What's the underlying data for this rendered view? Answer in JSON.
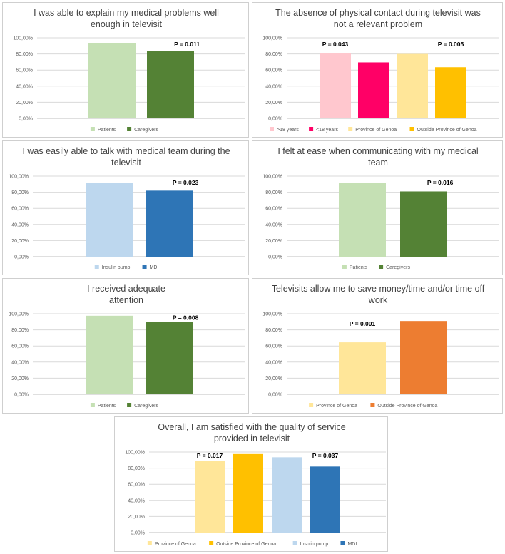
{
  "chart_data": [
    {
      "type": "bar",
      "title": [
        "I was able to explain my medical problems well",
        "enough in televisit"
      ],
      "ylim": [
        0,
        100
      ],
      "yticks": [
        "0,00%",
        "20,00%",
        "40,00%",
        "60,00%",
        "80,00%",
        "100,00%"
      ],
      "categories": [
        "Patients",
        "Caregivers"
      ],
      "values": [
        93.5,
        83.5
      ],
      "colors": [
        "#c5e0b4",
        "#548235"
      ],
      "annotations": [
        {
          "text": "P = 0.011",
          "bar": 1
        }
      ]
    },
    {
      "type": "bar",
      "title": [
        "The absence of physical contact during televisit was",
        "not a relevant problem"
      ],
      "ylim": [
        0,
        100
      ],
      "yticks": [
        "0,00%",
        "20,00%",
        "40,00%",
        "60,00%",
        "80,00%",
        "100,00%"
      ],
      "categories": [
        ">18 years",
        "<18 years",
        "Province of Genoa",
        "Outside Province of Genoa"
      ],
      "values": [
        80.5,
        69.5,
        80,
        63.5
      ],
      "colors": [
        "#ffc7ce",
        "#ff0066",
        "#ffe699",
        "#ffc000"
      ],
      "annotations": [
        {
          "text": "P = 0.043",
          "bar": 0
        },
        {
          "text": "P = 0.005",
          "bar": 3
        }
      ]
    },
    {
      "type": "bar",
      "title": [
        "I was easily able to talk with medical team during the",
        "televisit"
      ],
      "ylim": [
        0,
        100
      ],
      "yticks": [
        "0,00%",
        "20,00%",
        "40,00%",
        "60,00%",
        "80,00%",
        "100,00%"
      ],
      "categories": [
        "Insulin pump",
        "MDI"
      ],
      "values": [
        92,
        82
      ],
      "colors": [
        "#bdd7ee",
        "#2e75b6"
      ],
      "annotations": [
        {
          "text": "P = 0.023",
          "bar": 1
        }
      ]
    },
    {
      "type": "bar",
      "title": [
        "I felt at ease when communicating with my medical",
        "team"
      ],
      "ylim": [
        0,
        100
      ],
      "yticks": [
        "0,00%",
        "20,00%",
        "40,00%",
        "60,00%",
        "80,00%",
        "100,00%"
      ],
      "categories": [
        "Patients",
        "Caregivers"
      ],
      "values": [
        91.5,
        81
      ],
      "colors": [
        "#c5e0b4",
        "#548235"
      ],
      "annotations": [
        {
          "text": "P = 0.016",
          "bar": 1
        }
      ]
    },
    {
      "type": "bar",
      "title": [
        "I received adequate",
        "attention"
      ],
      "ylim": [
        0,
        100
      ],
      "yticks": [
        "0,00%",
        "20,00%",
        "40,00%",
        "60,00%",
        "80,00%",
        "100,00%"
      ],
      "categories": [
        "Patients",
        "Caregivers"
      ],
      "values": [
        97.5,
        90
      ],
      "colors": [
        "#c5e0b4",
        "#548235"
      ],
      "annotations": [
        {
          "text": "P = 0.008",
          "bar": 1
        }
      ]
    },
    {
      "type": "bar",
      "title": [
        "Televisits allow me to save money/time and/or time off",
        "work"
      ],
      "ylim": [
        0,
        100
      ],
      "yticks": [
        "0,00%",
        "20,00%",
        "40,00%",
        "60,00%",
        "80,00%",
        "100,00%"
      ],
      "categories": [
        "Province of Genoa",
        "Outside Province of Genoa"
      ],
      "values": [
        64.5,
        91
      ],
      "colors": [
        "#ffe699",
        "#ed7d31"
      ],
      "annotations": [
        {
          "text": "P = 0.001",
          "bar": 0
        }
      ]
    },
    {
      "type": "bar",
      "title": [
        "Overall, I am satisfied with the quality of service",
        "provided in televisit"
      ],
      "ylim": [
        0,
        100
      ],
      "yticks": [
        "0,00%",
        "20,00%",
        "40,00%",
        "60,00%",
        "80,00%",
        "100,00%"
      ],
      "categories": [
        "Province of Genoa",
        "Outside Province of Genoa",
        "Insulin pump",
        "MDI"
      ],
      "values": [
        89,
        97.5,
        93.5,
        82
      ],
      "colors": [
        "#ffe699",
        "#ffc000",
        "#bdd7ee",
        "#2e75b6"
      ],
      "annotations": [
        {
          "text": "P = 0.017",
          "bar": 0
        },
        {
          "text": "P = 0.037",
          "bar": 3
        }
      ]
    }
  ]
}
